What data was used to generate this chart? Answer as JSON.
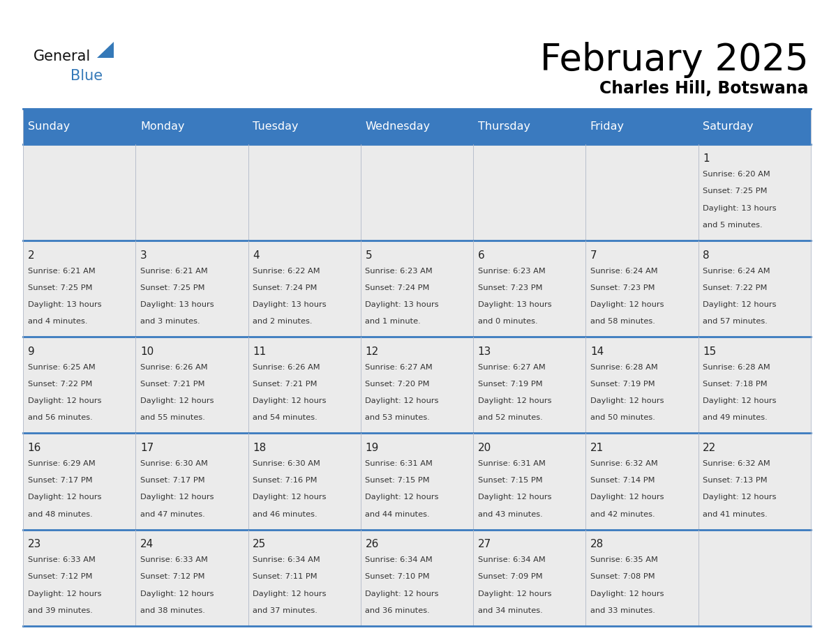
{
  "title": "February 2025",
  "subtitle": "Charles Hill, Botswana",
  "header_color": "#3a7abf",
  "header_text_color": "#ffffff",
  "cell_bg_color": "#ebebeb",
  "border_color": "#3a7abf",
  "row_border_color": "#3a7abf",
  "text_color": "#333333",
  "days_of_week": [
    "Sunday",
    "Monday",
    "Tuesday",
    "Wednesday",
    "Thursday",
    "Friday",
    "Saturday"
  ],
  "calendar_data": [
    [
      null,
      null,
      null,
      null,
      null,
      null,
      {
        "day": "1",
        "sunrise": "6:20 AM",
        "sunset": "7:25 PM",
        "daylight_line1": "Daylight: 13 hours",
        "daylight_line2": "and 5 minutes."
      }
    ],
    [
      {
        "day": "2",
        "sunrise": "6:21 AM",
        "sunset": "7:25 PM",
        "daylight_line1": "Daylight: 13 hours",
        "daylight_line2": "and 4 minutes."
      },
      {
        "day": "3",
        "sunrise": "6:21 AM",
        "sunset": "7:25 PM",
        "daylight_line1": "Daylight: 13 hours",
        "daylight_line2": "and 3 minutes."
      },
      {
        "day": "4",
        "sunrise": "6:22 AM",
        "sunset": "7:24 PM",
        "daylight_line1": "Daylight: 13 hours",
        "daylight_line2": "and 2 minutes."
      },
      {
        "day": "5",
        "sunrise": "6:23 AM",
        "sunset": "7:24 PM",
        "daylight_line1": "Daylight: 13 hours",
        "daylight_line2": "and 1 minute."
      },
      {
        "day": "6",
        "sunrise": "6:23 AM",
        "sunset": "7:23 PM",
        "daylight_line1": "Daylight: 13 hours",
        "daylight_line2": "and 0 minutes."
      },
      {
        "day": "7",
        "sunrise": "6:24 AM",
        "sunset": "7:23 PM",
        "daylight_line1": "Daylight: 12 hours",
        "daylight_line2": "and 58 minutes."
      },
      {
        "day": "8",
        "sunrise": "6:24 AM",
        "sunset": "7:22 PM",
        "daylight_line1": "Daylight: 12 hours",
        "daylight_line2": "and 57 minutes."
      }
    ],
    [
      {
        "day": "9",
        "sunrise": "6:25 AM",
        "sunset": "7:22 PM",
        "daylight_line1": "Daylight: 12 hours",
        "daylight_line2": "and 56 minutes."
      },
      {
        "day": "10",
        "sunrise": "6:26 AM",
        "sunset": "7:21 PM",
        "daylight_line1": "Daylight: 12 hours",
        "daylight_line2": "and 55 minutes."
      },
      {
        "day": "11",
        "sunrise": "6:26 AM",
        "sunset": "7:21 PM",
        "daylight_line1": "Daylight: 12 hours",
        "daylight_line2": "and 54 minutes."
      },
      {
        "day": "12",
        "sunrise": "6:27 AM",
        "sunset": "7:20 PM",
        "daylight_line1": "Daylight: 12 hours",
        "daylight_line2": "and 53 minutes."
      },
      {
        "day": "13",
        "sunrise": "6:27 AM",
        "sunset": "7:19 PM",
        "daylight_line1": "Daylight: 12 hours",
        "daylight_line2": "and 52 minutes."
      },
      {
        "day": "14",
        "sunrise": "6:28 AM",
        "sunset": "7:19 PM",
        "daylight_line1": "Daylight: 12 hours",
        "daylight_line2": "and 50 minutes."
      },
      {
        "day": "15",
        "sunrise": "6:28 AM",
        "sunset": "7:18 PM",
        "daylight_line1": "Daylight: 12 hours",
        "daylight_line2": "and 49 minutes."
      }
    ],
    [
      {
        "day": "16",
        "sunrise": "6:29 AM",
        "sunset": "7:17 PM",
        "daylight_line1": "Daylight: 12 hours",
        "daylight_line2": "and 48 minutes."
      },
      {
        "day": "17",
        "sunrise": "6:30 AM",
        "sunset": "7:17 PM",
        "daylight_line1": "Daylight: 12 hours",
        "daylight_line2": "and 47 minutes."
      },
      {
        "day": "18",
        "sunrise": "6:30 AM",
        "sunset": "7:16 PM",
        "daylight_line1": "Daylight: 12 hours",
        "daylight_line2": "and 46 minutes."
      },
      {
        "day": "19",
        "sunrise": "6:31 AM",
        "sunset": "7:15 PM",
        "daylight_line1": "Daylight: 12 hours",
        "daylight_line2": "and 44 minutes."
      },
      {
        "day": "20",
        "sunrise": "6:31 AM",
        "sunset": "7:15 PM",
        "daylight_line1": "Daylight: 12 hours",
        "daylight_line2": "and 43 minutes."
      },
      {
        "day": "21",
        "sunrise": "6:32 AM",
        "sunset": "7:14 PM",
        "daylight_line1": "Daylight: 12 hours",
        "daylight_line2": "and 42 minutes."
      },
      {
        "day": "22",
        "sunrise": "6:32 AM",
        "sunset": "7:13 PM",
        "daylight_line1": "Daylight: 12 hours",
        "daylight_line2": "and 41 minutes."
      }
    ],
    [
      {
        "day": "23",
        "sunrise": "6:33 AM",
        "sunset": "7:12 PM",
        "daylight_line1": "Daylight: 12 hours",
        "daylight_line2": "and 39 minutes."
      },
      {
        "day": "24",
        "sunrise": "6:33 AM",
        "sunset": "7:12 PM",
        "daylight_line1": "Daylight: 12 hours",
        "daylight_line2": "and 38 minutes."
      },
      {
        "day": "25",
        "sunrise": "6:34 AM",
        "sunset": "7:11 PM",
        "daylight_line1": "Daylight: 12 hours",
        "daylight_line2": "and 37 minutes."
      },
      {
        "day": "26",
        "sunrise": "6:34 AM",
        "sunset": "7:10 PM",
        "daylight_line1": "Daylight: 12 hours",
        "daylight_line2": "and 36 minutes."
      },
      {
        "day": "27",
        "sunrise": "6:34 AM",
        "sunset": "7:09 PM",
        "daylight_line1": "Daylight: 12 hours",
        "daylight_line2": "and 34 minutes."
      },
      {
        "day": "28",
        "sunrise": "6:35 AM",
        "sunset": "7:08 PM",
        "daylight_line1": "Daylight: 12 hours",
        "daylight_line2": "and 33 minutes."
      },
      null
    ]
  ]
}
